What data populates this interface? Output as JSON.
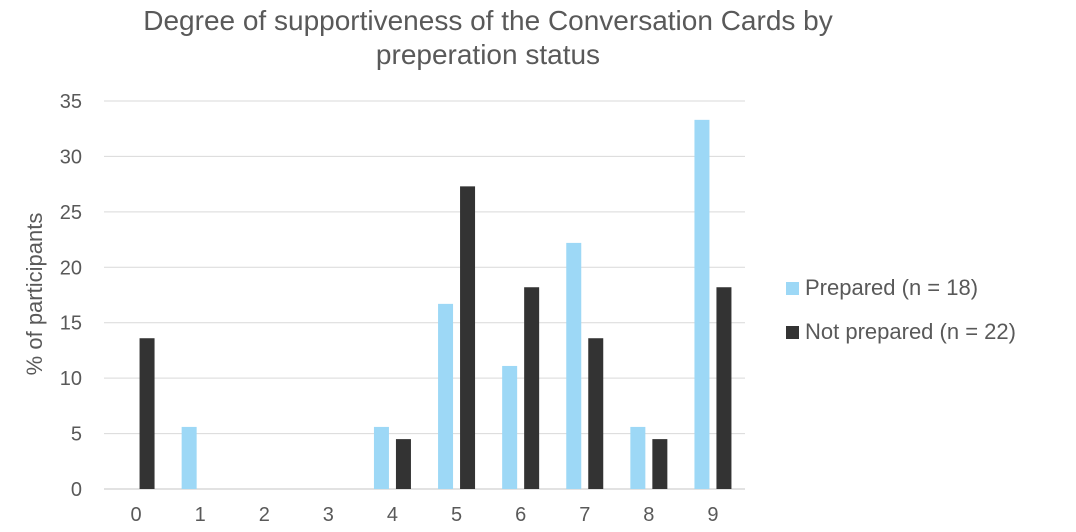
{
  "chart_data": {
    "type": "bar",
    "title_lines": [
      "Degree of supportiveness of the Conversation Cards by",
      "preperation status"
    ],
    "xlabel": "",
    "ylabel": "% of participants",
    "ylim": [
      0,
      35
    ],
    "yticks": [
      0,
      5,
      10,
      15,
      20,
      25,
      30,
      35
    ],
    "grid": true,
    "legend_position": "right",
    "categories": [
      "0",
      "1",
      "2",
      "3",
      "4",
      "5",
      "6",
      "7",
      "8",
      "9"
    ],
    "series": [
      {
        "name": "Prepared (n = 18)",
        "color": "#9dd8f6",
        "values": [
          0,
          5.6,
          0,
          0,
          5.6,
          16.7,
          11.1,
          22.2,
          5.6,
          33.3
        ]
      },
      {
        "name": "Not prepared (n = 22)",
        "color": "#333333",
        "values": [
          13.6,
          0,
          0,
          0,
          4.5,
          27.3,
          18.2,
          13.6,
          4.5,
          18.2
        ]
      }
    ]
  }
}
